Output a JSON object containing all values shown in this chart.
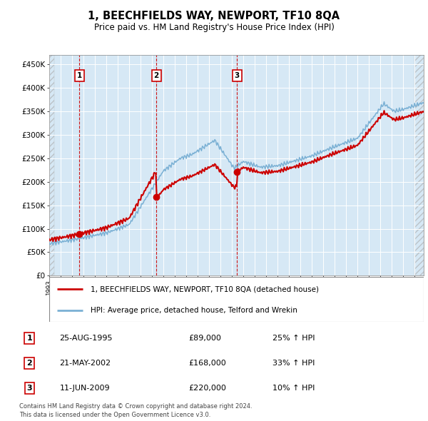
{
  "title": "1, BEECHFIELDS WAY, NEWPORT, TF10 8QA",
  "subtitle": "Price paid vs. HM Land Registry's House Price Index (HPI)",
  "xlim_start": 1993.0,
  "xlim_end": 2025.8,
  "ylim": [
    0,
    470000
  ],
  "yticks": [
    0,
    50000,
    100000,
    150000,
    200000,
    250000,
    300000,
    350000,
    400000,
    450000
  ],
  "ytick_labels": [
    "£0",
    "£50K",
    "£100K",
    "£150K",
    "£200K",
    "£250K",
    "£300K",
    "£350K",
    "£400K",
    "£450K"
  ],
  "sales": [
    {
      "date": 1995.646,
      "price": 89000,
      "label": "1"
    },
    {
      "date": 2002.384,
      "price": 168000,
      "label": "2"
    },
    {
      "date": 2009.44,
      "price": 220000,
      "label": "3"
    }
  ],
  "sale_annotations": [
    {
      "label": "1",
      "date_str": "25-AUG-1995",
      "price_str": "£89,000",
      "hpi_str": "25% ↑ HPI"
    },
    {
      "label": "2",
      "date_str": "21-MAY-2002",
      "price_str": "£168,000",
      "hpi_str": "33% ↑ HPI"
    },
    {
      "label": "3",
      "date_str": "11-JUN-2009",
      "price_str": "£220,000",
      "hpi_str": "10% ↑ HPI"
    }
  ],
  "legend_property": "1, BEECHFIELDS WAY, NEWPORT, TF10 8QA (detached house)",
  "legend_hpi": "HPI: Average price, detached house, Telford and Wrekin",
  "footer": "Contains HM Land Registry data © Crown copyright and database right 2024.\nThis data is licensed under the Open Government Licence v3.0.",
  "property_line_color": "#cc0000",
  "hpi_line_color": "#7ab0d4",
  "sale_marker_color": "#cc0000",
  "vline_color": "#cc0000",
  "grid_color": "#ffffff",
  "plot_bg_color": "#d6e8f5"
}
